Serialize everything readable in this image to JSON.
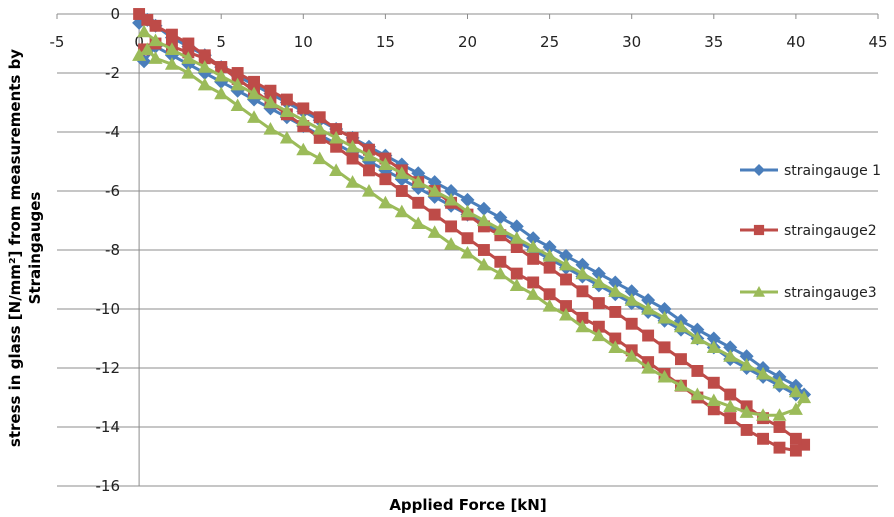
{
  "chart_data": {
    "type": "scatter",
    "title": "",
    "xlabel": "Applied Force [kN]",
    "ylabel_line1": "stress in glass [N/mm²] from measurements by",
    "ylabel_line2": "Straingauges",
    "xlim": [
      -5,
      45
    ],
    "ylim": [
      -16,
      0
    ],
    "xticks": [
      -5,
      0,
      5,
      10,
      15,
      20,
      25,
      30,
      35,
      40,
      45
    ],
    "yticks": [
      0,
      -2,
      -4,
      -6,
      -8,
      -10,
      -12,
      -14,
      -16
    ],
    "grid": "horizontal",
    "x_axis_position": "top",
    "legend_position": "right",
    "series": [
      {
        "name": "straingauge 1",
        "color": "#4A7EBB",
        "marker": "diamond",
        "x": [
          0,
          0.5,
          1,
          2,
          3,
          4,
          5,
          6,
          7,
          8,
          9,
          10,
          11,
          12,
          13,
          14,
          15,
          16,
          17,
          18,
          19,
          20,
          21,
          22,
          23,
          24,
          25,
          26,
          27,
          28,
          29,
          30,
          31,
          32,
          33,
          34,
          35,
          36,
          37,
          38,
          39,
          40,
          40.5,
          40,
          39,
          38,
          37,
          36,
          35,
          34,
          33,
          32,
          31,
          30,
          29,
          28,
          27,
          26,
          25,
          24,
          23,
          22,
          21,
          20,
          19,
          18,
          17,
          16,
          15,
          14,
          13,
          12,
          11,
          10,
          9,
          8,
          7,
          6,
          5,
          4,
          3,
          2,
          1,
          0.3
        ],
        "y": [
          -0.3,
          -0.2,
          -0.4,
          -0.8,
          -1.1,
          -1.4,
          -1.8,
          -2.1,
          -2.4,
          -2.7,
          -3.0,
          -3.3,
          -3.6,
          -3.9,
          -4.2,
          -4.5,
          -4.8,
          -5.1,
          -5.4,
          -5.7,
          -6.0,
          -6.3,
          -6.6,
          -6.9,
          -7.2,
          -7.6,
          -7.9,
          -8.2,
          -8.5,
          -8.8,
          -9.1,
          -9.4,
          -9.7,
          -10.0,
          -10.4,
          -10.7,
          -11.0,
          -11.3,
          -11.6,
          -12.0,
          -12.3,
          -12.6,
          -12.9,
          -12.9,
          -12.6,
          -12.3,
          -12.0,
          -11.7,
          -11.3,
          -11.0,
          -10.7,
          -10.4,
          -10.1,
          -9.8,
          -9.5,
          -9.2,
          -8.9,
          -8.6,
          -8.3,
          -8.0,
          -7.7,
          -7.4,
          -7.1,
          -6.8,
          -6.5,
          -6.2,
          -5.9,
          -5.6,
          -5.3,
          -5.0,
          -4.7,
          -4.4,
          -4.1,
          -3.8,
          -3.5,
          -3.2,
          -2.9,
          -2.6,
          -2.3,
          -2.0,
          -1.7,
          -1.4,
          -1.1,
          -1.6
        ]
      },
      {
        "name": "straingauge2",
        "color": "#BE4B48",
        "marker": "square",
        "x": [
          0,
          0.5,
          1,
          2,
          3,
          4,
          5,
          6,
          7,
          8,
          9,
          10,
          11,
          12,
          13,
          14,
          15,
          16,
          17,
          18,
          19,
          20,
          21,
          22,
          23,
          24,
          25,
          26,
          27,
          28,
          29,
          30,
          31,
          32,
          33,
          34,
          35,
          36,
          37,
          38,
          39,
          40,
          40.5,
          40,
          39,
          38,
          37,
          36,
          35,
          34,
          33,
          32,
          31,
          30,
          29,
          28,
          27,
          26,
          25,
          24,
          23,
          22,
          21,
          20,
          19,
          18,
          17,
          16,
          15,
          14,
          13,
          12,
          11,
          10,
          9,
          8,
          7,
          6,
          5,
          4,
          3,
          2,
          1,
          0.3
        ],
        "y": [
          0,
          -0.2,
          -0.4,
          -0.7,
          -1.0,
          -1.4,
          -1.8,
          -2.2,
          -2.6,
          -3.0,
          -3.4,
          -3.8,
          -4.2,
          -4.5,
          -4.9,
          -5.3,
          -5.6,
          -6.0,
          -6.4,
          -6.8,
          -7.2,
          -7.6,
          -8.0,
          -8.4,
          -8.8,
          -9.1,
          -9.5,
          -9.9,
          -10.3,
          -10.6,
          -11.0,
          -11.4,
          -11.8,
          -12.2,
          -12.6,
          -13.0,
          -13.4,
          -13.7,
          -14.1,
          -14.4,
          -14.7,
          -14.8,
          -14.6,
          -14.4,
          -14.0,
          -13.7,
          -13.3,
          -12.9,
          -12.5,
          -12.1,
          -11.7,
          -11.3,
          -10.9,
          -10.5,
          -10.1,
          -9.8,
          -9.4,
          -9.0,
          -8.6,
          -8.3,
          -7.9,
          -7.5,
          -7.2,
          -6.8,
          -6.4,
          -6.0,
          -5.7,
          -5.3,
          -4.9,
          -4.6,
          -4.2,
          -3.9,
          -3.5,
          -3.2,
          -2.9,
          -2.6,
          -2.3,
          -2.0,
          -1.8,
          -1.5,
          -1.3,
          -1.1,
          -1.0,
          -1.2
        ]
      },
      {
        "name": "straingauge3",
        "color": "#9BBB59",
        "marker": "triangle",
        "x": [
          0,
          0.5,
          1,
          2,
          3,
          4,
          5,
          6,
          7,
          8,
          9,
          10,
          11,
          12,
          13,
          14,
          15,
          16,
          17,
          18,
          19,
          20,
          21,
          22,
          23,
          24,
          25,
          26,
          27,
          28,
          29,
          30,
          31,
          32,
          33,
          34,
          35,
          36,
          37,
          38,
          39,
          40,
          40.5,
          40,
          39,
          38,
          37,
          36,
          35,
          34,
          33,
          32,
          31,
          30,
          29,
          28,
          27,
          26,
          25,
          24,
          23,
          22,
          21,
          20,
          19,
          18,
          17,
          16,
          15,
          14,
          13,
          12,
          11,
          10,
          9,
          8,
          7,
          6,
          5,
          4,
          3,
          2,
          1,
          0.3
        ],
        "y": [
          -1.4,
          -1.2,
          -1.5,
          -1.7,
          -2.0,
          -2.4,
          -2.7,
          -3.1,
          -3.5,
          -3.9,
          -4.2,
          -4.6,
          -4.9,
          -5.3,
          -5.7,
          -6.0,
          -6.4,
          -6.7,
          -7.1,
          -7.4,
          -7.8,
          -8.1,
          -8.5,
          -8.8,
          -9.2,
          -9.5,
          -9.9,
          -10.2,
          -10.6,
          -10.9,
          -11.3,
          -11.6,
          -12.0,
          -12.3,
          -12.6,
          -12.9,
          -13.1,
          -13.3,
          -13.5,
          -13.6,
          -13.6,
          -13.4,
          -13.0,
          -12.8,
          -12.5,
          -12.2,
          -11.9,
          -11.6,
          -11.3,
          -11.0,
          -10.6,
          -10.3,
          -10.0,
          -9.7,
          -9.4,
          -9.1,
          -8.8,
          -8.5,
          -8.2,
          -7.9,
          -7.6,
          -7.3,
          -7.0,
          -6.7,
          -6.3,
          -6.0,
          -5.7,
          -5.4,
          -5.1,
          -4.8,
          -4.5,
          -4.2,
          -3.9,
          -3.6,
          -3.3,
          -3.0,
          -2.7,
          -2.4,
          -2.1,
          -1.8,
          -1.5,
          -1.2,
          -0.9,
          -0.6
        ]
      }
    ]
  }
}
